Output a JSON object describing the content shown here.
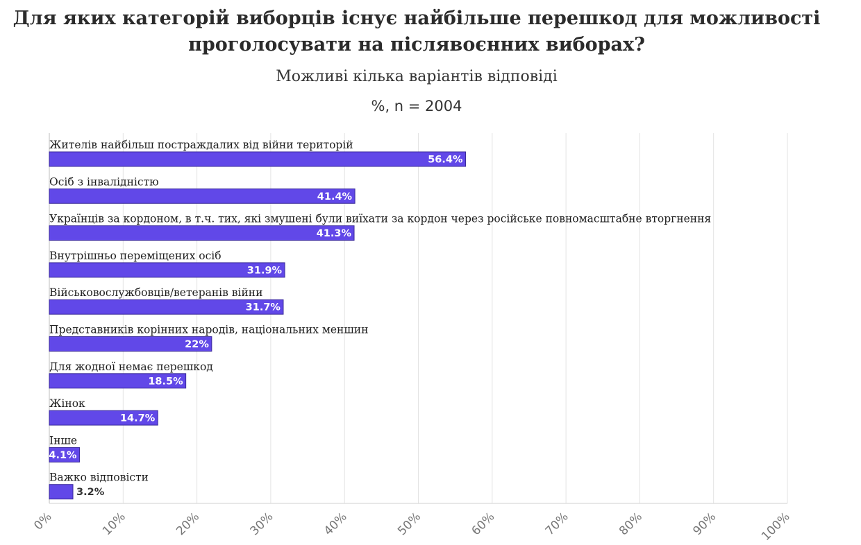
{
  "chart_data": {
    "type": "bar",
    "orientation": "horizontal",
    "title_line1": "Для яких категорій виборців існує найбільше перешкод для можливості",
    "title_line2": "проголосувати на післявоєнних виборах?",
    "subtitle": "Можливі кілька варіантів відповіді",
    "unit_label": "%, n = 2004",
    "categories": [
      "Жителів найбільш постраждалих від війни територій",
      "Осіб з інвалідністю",
      "Українців за кордоном, в т.ч. тих, які змушені були виїхати за кордон через російське повномасштабне вторгнення",
      "Внутрішньо переміщених осіб",
      "Військовослужбовців/ветеранів війни",
      "Представників корінних народів, національних меншин",
      "Для жодної немає перешкод",
      "Жінок",
      "Інше",
      "Важко відповісти"
    ],
    "values": [
      56.4,
      41.4,
      41.3,
      31.9,
      31.7,
      22,
      18.5,
      14.7,
      4.1,
      3.2
    ],
    "value_labels": [
      "56.4%",
      "41.4%",
      "41.3%",
      "31.9%",
      "31.7%",
      "22%",
      "18.5%",
      "14.7%",
      "4.1%",
      "3.2%"
    ],
    "xlim": [
      0,
      100
    ],
    "xticks": [
      "0%",
      "10%",
      "20%",
      "30%",
      "40%",
      "50%",
      "60%",
      "70%",
      "80%",
      "90%",
      "100%"
    ],
    "grid": true,
    "bar_color": "#6148e8",
    "bar_edge_color": "#3a2a9a"
  }
}
